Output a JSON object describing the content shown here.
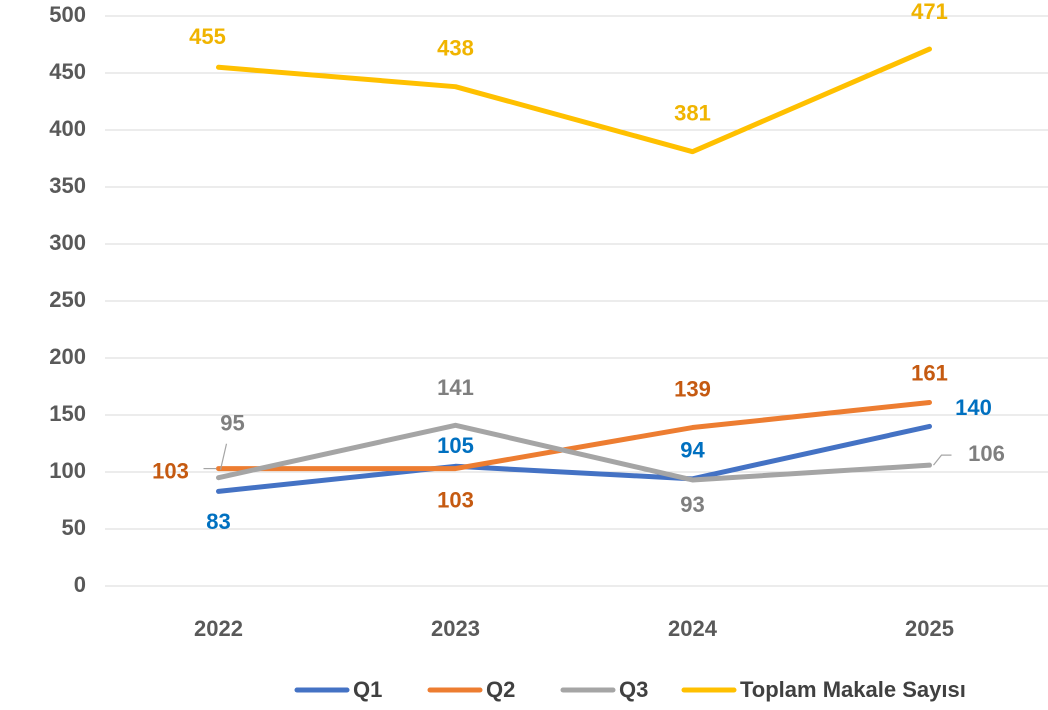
{
  "chart_data": {
    "type": "line",
    "categories": [
      "2022",
      "2023",
      "2024",
      "2025"
    ],
    "series": [
      {
        "name": "Q1",
        "color": "#4472c4",
        "label_color": "#0070c0",
        "values": [
          83,
          105,
          94,
          140
        ]
      },
      {
        "name": "Q2",
        "color": "#ed7d31",
        "label_color": "#c55a11",
        "values": [
          103,
          103,
          139,
          161
        ]
      },
      {
        "name": "Q3",
        "color": "#a5a5a5",
        "label_color": "#7f7f7f",
        "values": [
          95,
          141,
          93,
          106
        ]
      },
      {
        "name": "Toplam Makale Sayısı",
        "color": "#ffc000",
        "label_color": "#f0b400",
        "values": [
          455,
          438,
          381,
          471
        ]
      }
    ],
    "ylim": [
      0,
      500
    ],
    "yticks": [
      0,
      50,
      100,
      150,
      200,
      250,
      300,
      350,
      400,
      450,
      500
    ],
    "grid": true,
    "legend": "bottom"
  }
}
